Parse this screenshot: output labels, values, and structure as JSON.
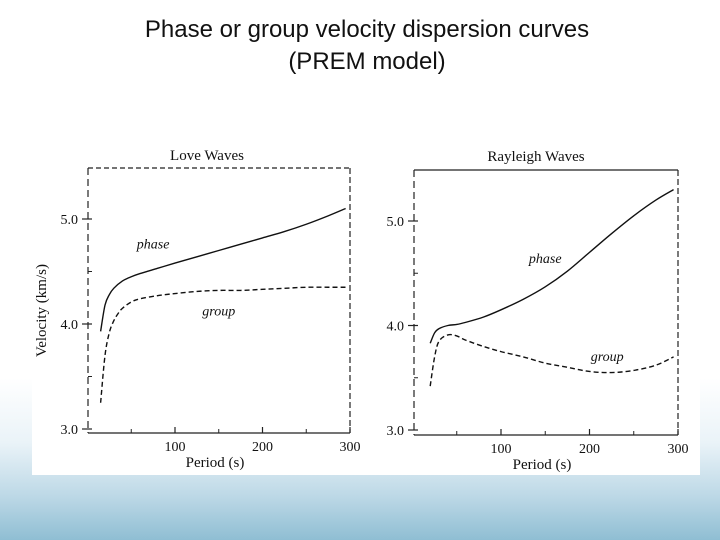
{
  "slide": {
    "title_line1": "Phase or group velocity dispersion curves",
    "title_line2": "(PREM model)"
  },
  "chart_data": [
    {
      "type": "line",
      "title": "Love Waves",
      "xlabel": "Period (s)",
      "ylabel": "Velocity (km/s)",
      "xlim": [
        0,
        300
      ],
      "ylim": [
        3.0,
        5.5
      ],
      "x_ticks": [
        "100",
        "200",
        "300"
      ],
      "y_ticks": [
        "3.0",
        "4.0",
        "5.0"
      ],
      "grid": false,
      "series": [
        {
          "name": "phase",
          "style": "solid",
          "x": [
            15,
            20,
            25,
            30,
            40,
            50,
            60,
            80,
            100,
            125,
            150,
            175,
            200,
            225,
            250,
            275,
            295
          ],
          "y": [
            3.93,
            4.18,
            4.28,
            4.34,
            4.41,
            4.45,
            4.48,
            4.53,
            4.58,
            4.64,
            4.7,
            4.76,
            4.82,
            4.88,
            4.95,
            5.03,
            5.1
          ]
        },
        {
          "name": "group",
          "style": "dashed",
          "x": [
            15,
            20,
            25,
            30,
            35,
            40,
            50,
            60,
            80,
            100,
            125,
            150,
            175,
            200,
            225,
            250,
            275,
            295
          ],
          "y": [
            3.25,
            3.7,
            3.92,
            4.03,
            4.1,
            4.15,
            4.21,
            4.24,
            4.27,
            4.29,
            4.31,
            4.32,
            4.32,
            4.33,
            4.34,
            4.35,
            4.35,
            4.35
          ]
        }
      ]
    },
    {
      "type": "line",
      "title": "Rayleigh Waves",
      "xlabel": "Period (s)",
      "ylabel": "",
      "xlim": [
        0,
        300
      ],
      "ylim": [
        3.0,
        5.5
      ],
      "x_ticks": [
        "100",
        "200",
        "300"
      ],
      "y_ticks": [
        "3.0",
        "4.0",
        "5.0"
      ],
      "grid": false,
      "series": [
        {
          "name": "phase",
          "style": "solid",
          "x": [
            20,
            25,
            30,
            40,
            50,
            60,
            80,
            100,
            125,
            150,
            175,
            200,
            225,
            250,
            275,
            295
          ],
          "y": [
            3.83,
            3.93,
            3.97,
            4.0,
            4.01,
            4.03,
            4.08,
            4.15,
            4.25,
            4.37,
            4.52,
            4.7,
            4.88,
            5.05,
            5.2,
            5.3
          ]
        },
        {
          "name": "group",
          "style": "dashed",
          "x": [
            20,
            25,
            30,
            40,
            50,
            60,
            80,
            100,
            125,
            150,
            175,
            200,
            225,
            250,
            275,
            295
          ],
          "y": [
            3.42,
            3.7,
            3.85,
            3.91,
            3.9,
            3.86,
            3.8,
            3.75,
            3.7,
            3.64,
            3.6,
            3.56,
            3.55,
            3.57,
            3.62,
            3.7
          ]
        }
      ]
    }
  ]
}
